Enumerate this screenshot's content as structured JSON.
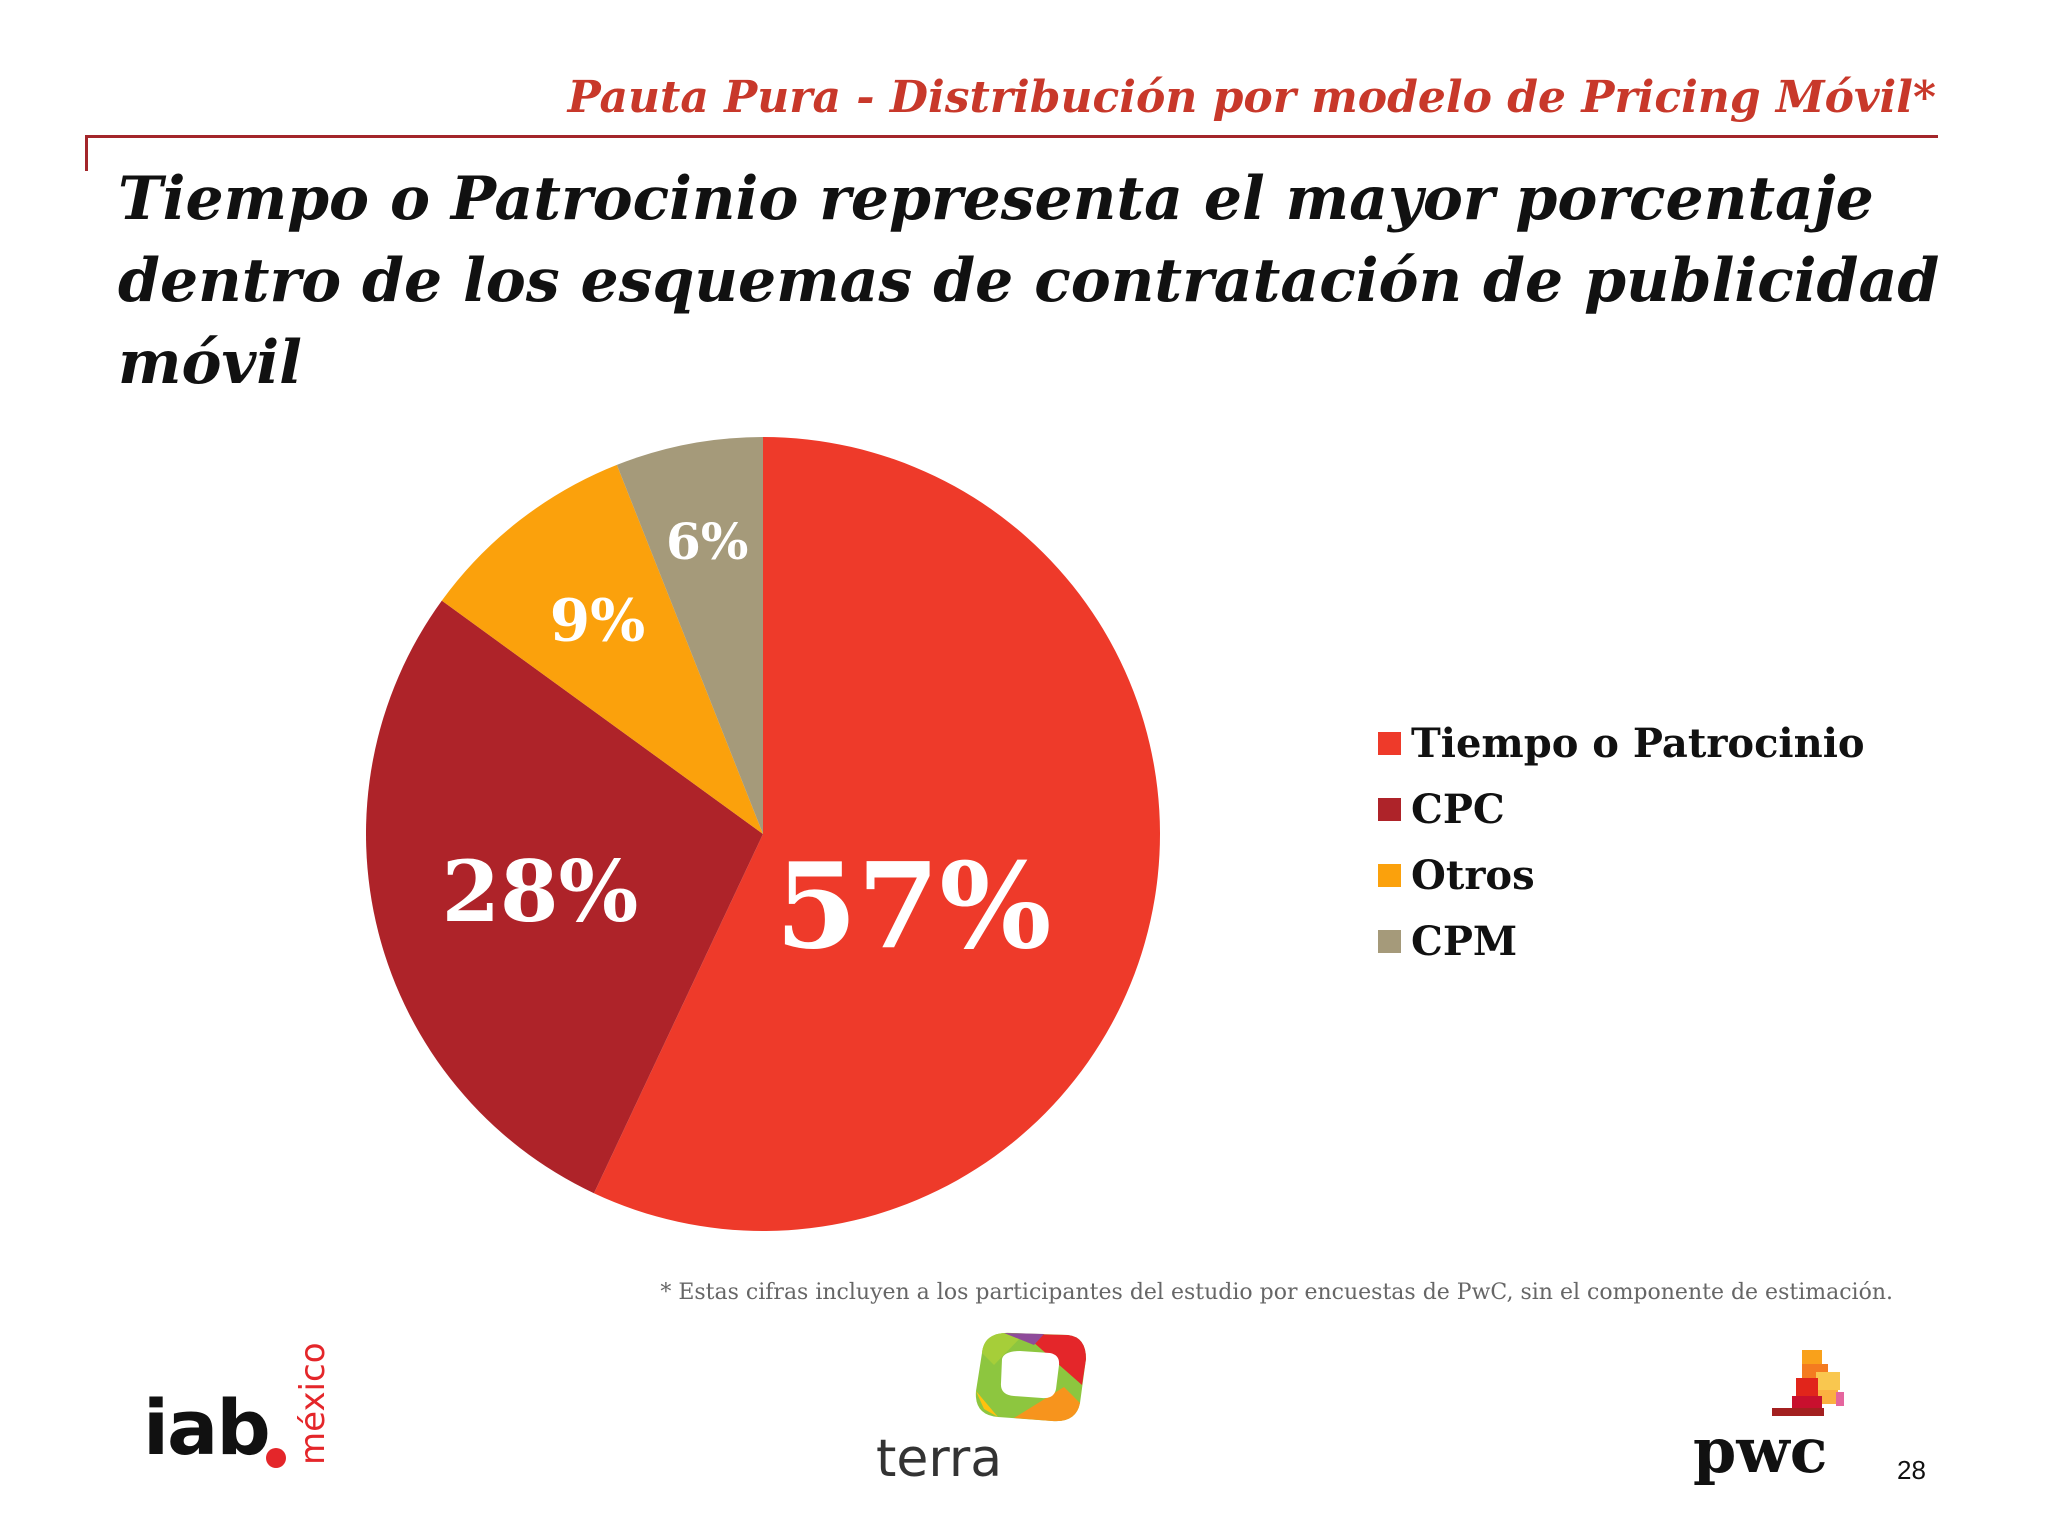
{
  "slide": {
    "header_title": "Pauta Pura - Distribución por modelo de Pricing Móvil*",
    "headline": "Tiempo o Patrocinio representa el mayor porcentaje dentro de los esquemas de contratación de publicidad móvil",
    "footnote": "* Estas cifras incluyen a los participantes del estudio por encuestas de PwC, sin el componente de estimación.",
    "page_number": "28",
    "accent_color": "#c8382a",
    "rule_color": "#a3262a"
  },
  "logos": {
    "iab": {
      "text": "iab",
      "sub": "méxico",
      "icon": "iab-mexico-logo"
    },
    "terra": {
      "text": "terra",
      "icon": "terra-logo"
    },
    "pwc": {
      "text": "pwc",
      "icon": "pwc-logo"
    }
  },
  "chart_data": {
    "type": "pie",
    "title": "",
    "start_angle_deg": 0,
    "direction": "clockwise",
    "legend_position": "right",
    "slices": [
      {
        "label": "Tiempo o Patrocinio",
        "value": 57,
        "display": "57%",
        "color": "#ee3a2a"
      },
      {
        "label": "CPC",
        "value": 28,
        "display": "28%",
        "color": "#ae2329"
      },
      {
        "label": "Otros",
        "value": 9,
        "display": "9%",
        "color": "#fba10c"
      },
      {
        "label": "CPM",
        "value": 6,
        "display": "6%",
        "color": "#a59a7a"
      }
    ]
  }
}
